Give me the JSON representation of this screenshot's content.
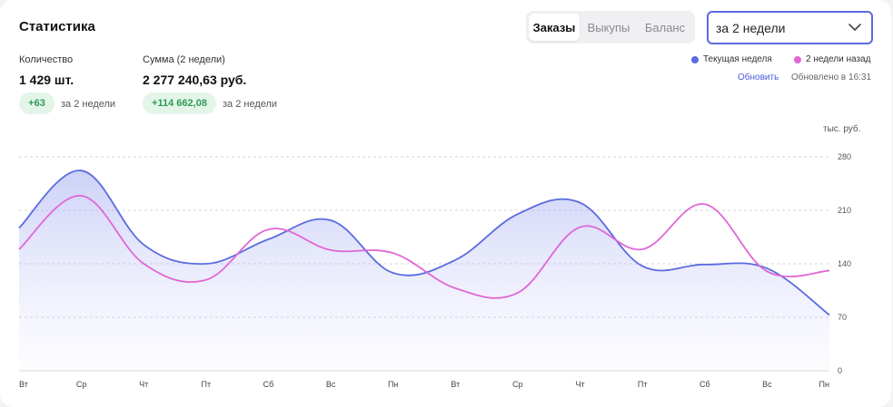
{
  "header": {
    "title": "Статистика",
    "tabs": [
      {
        "label": "Заказы",
        "active": true
      },
      {
        "label": "Выкупы",
        "active": false
      },
      {
        "label": "Баланс",
        "active": false
      }
    ],
    "period_select": {
      "value": "за 2 недели",
      "icon": "chevron-down-icon"
    }
  },
  "metrics": {
    "quantity": {
      "label": "Количество",
      "value": "1 429 шт.",
      "delta": "+63",
      "delta_note": "за 2 недели"
    },
    "sum": {
      "label": "Сумма (2 недели)",
      "value": "2 277 240,63 руб.",
      "delta": "+114 662,08",
      "delta_note": "за 2 недели"
    }
  },
  "legend": {
    "current": "Текущая неделя",
    "previous": "2 недели назад"
  },
  "refresh_label": "Обновить",
  "updated_label": "Обновлено в 16:31",
  "colors": {
    "current": "#5b6bdf",
    "previous": "#e066d6",
    "badge_bg": "#e3f5e8",
    "badge_text": "#2e9b55",
    "accent": "#5b6bdf"
  },
  "chart_data": {
    "type": "line",
    "ylabel": "тыс. руб.",
    "ylim": [
      0,
      280
    ],
    "yticks": [
      0,
      70,
      140,
      210,
      280
    ],
    "categories": [
      "Вт",
      "Ср",
      "Чт",
      "Пт",
      "Сб",
      "Вс",
      "Пн",
      "Вт",
      "Ср",
      "Чт",
      "Пт",
      "Сб",
      "Вс",
      "Пн"
    ],
    "grid": true,
    "legend_position": "top-right",
    "series": [
      {
        "name": "Текущая неделя",
        "values": [
          187,
          262,
          165,
          140,
          172,
          197,
          128,
          145,
          205,
          220,
          137,
          139,
          134,
          73
        ],
        "area": true
      },
      {
        "name": "2 недели назад",
        "values": [
          159,
          229,
          140,
          119,
          185,
          158,
          154,
          108,
          102,
          188,
          159,
          218,
          130,
          131
        ],
        "area": false
      }
    ]
  }
}
